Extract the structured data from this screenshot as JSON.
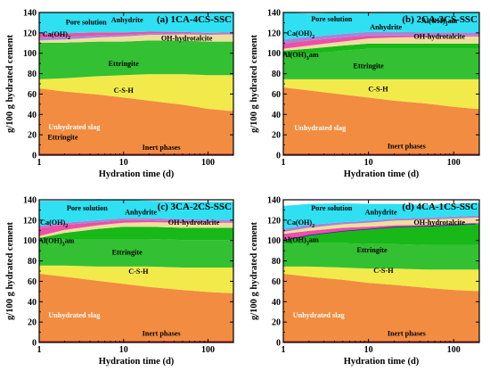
{
  "figure": {
    "ylabel": "g/100 g hydrated cement",
    "xlabel": "Hydration time (d)"
  },
  "palette": {
    "Inert phases": "#b01818",
    "Unhydrated slag": "#f28c40",
    "C-S-H": "#f2ea4a",
    "Ettringite": "#33c033",
    "Al(OH)3am": "#18b818",
    "OH-hydrotalcite": "#ede09c",
    "Anhydrite": "#a287d6",
    "Ca(OH)2": "#ee4fa8",
    "Pore solution": "#2ee0f2",
    "C4AF-line": "#3a1fae"
  },
  "label_colors": {
    "Unhydrated slag": "#ffffff"
  },
  "chart_data": [
    {
      "type": "area",
      "title": "(a) 1CA-4CS-SSC",
      "x": [
        1,
        2,
        5,
        10,
        20,
        50,
        100,
        180
      ],
      "xscale": "log",
      "xlim": [
        1,
        200
      ],
      "ylim": [
        0,
        140
      ],
      "xticks": [
        1,
        10,
        100
      ],
      "yticks": [
        0,
        20,
        40,
        60,
        80,
        100,
        120,
        140
      ],
      "xlabel": "Hydration time (d)",
      "ylabel": "g/100 g hydrated cement",
      "series": [
        {
          "name": "Inert phases",
          "values": [
            1.5,
            1.5,
            1.5,
            1.5,
            1.5,
            1.5,
            1.5,
            1.5
          ]
        },
        {
          "name": "Unhydrated slag",
          "values": [
            64,
            61,
            58,
            55,
            52,
            48,
            44,
            42
          ]
        },
        {
          "name": "C-S-H",
          "values": [
            9,
            13,
            18,
            22,
            26,
            30,
            33,
            35
          ]
        },
        {
          "name": "Ettringite",
          "values": [
            36,
            35,
            34,
            33,
            33,
            33,
            33,
            33
          ]
        },
        {
          "name": "OH-hydrotalcite",
          "values": [
            2,
            3,
            4,
            5,
            5.5,
            6,
            6.5,
            7
          ]
        },
        {
          "name": "Anhydrite",
          "values": [
            3,
            2.5,
            2,
            1.5,
            1.2,
            1,
            1,
            1
          ]
        },
        {
          "name": "Ca(OH)2",
          "values": [
            4,
            3.5,
            3,
            2.5,
            2,
            1.5,
            1,
            1
          ]
        },
        {
          "name": "Pore solution",
          "values": [
            20.5,
            20.5,
            19.5,
            19.5,
            18.8,
            19,
            20,
            19.5
          ]
        }
      ],
      "labels": [
        {
          "text": "Pore solution",
          "series": "Pore solution",
          "x": 3.6,
          "y": 131
        },
        {
          "text": "Anhydrite",
          "series": "Anhydrite",
          "x": 11,
          "y": 133
        },
        {
          "text": "Ca(OH)2",
          "series": "Ca(OH)2",
          "x": 1.6,
          "y": 119
        },
        {
          "text": "OH-hydrotalcite",
          "series": "OH-hydrotalcite",
          "x": 56,
          "y": 115
        },
        {
          "text": "Ettringite",
          "series": "Ettringite",
          "x": 10,
          "y": 90
        },
        {
          "text": "C-S-H",
          "series": "C-S-H",
          "x": 10,
          "y": 64
        },
        {
          "text": "Unhydrated slag",
          "series": "Unhydrated slag",
          "x": 2.6,
          "y": 28
        },
        {
          "text": "Inert phases",
          "series": "Inert phases",
          "x": 28,
          "y": 8
        },
        {
          "text": "Ettringite",
          "series": "Unhydrated slag",
          "x": 1.9,
          "y": 18
        }
      ]
    },
    {
      "type": "area",
      "title": "(b) 2CA-3CS-SSC",
      "x": [
        1,
        2,
        5,
        10,
        20,
        50,
        100,
        180
      ],
      "xscale": "log",
      "xlim": [
        1,
        200
      ],
      "ylim": [
        0,
        140
      ],
      "xticks": [
        1,
        10,
        100
      ],
      "yticks": [
        0,
        20,
        40,
        60,
        80,
        100,
        120,
        140
      ],
      "xlabel": "Hydration time (d)",
      "ylabel": "g/100 g hydrated cement",
      "series": [
        {
          "name": "Inert phases",
          "values": [
            1.5,
            1.5,
            1.5,
            1.5,
            1.5,
            1.5,
            1.5,
            1.5
          ]
        },
        {
          "name": "Unhydrated slag",
          "values": [
            65,
            62,
            58,
            55,
            52,
            49,
            46,
            44
          ]
        },
        {
          "name": "C-S-H",
          "values": [
            8,
            11,
            15,
            18,
            21,
            24,
            27,
            29
          ]
        },
        {
          "name": "Ettringite",
          "values": [
            22,
            25,
            28,
            30,
            30,
            30,
            30,
            30
          ]
        },
        {
          "name": "Al(OH)3am",
          "values": [
            6,
            5,
            5,
            5,
            5,
            5,
            5,
            5
          ]
        },
        {
          "name": "OH-hydrotalcite",
          "values": [
            2,
            3,
            4,
            5,
            6,
            6.5,
            7,
            7
          ]
        },
        {
          "name": "Ca(OH)2",
          "values": [
            5,
            5,
            4,
            3,
            2,
            1.5,
            1,
            1
          ]
        },
        {
          "name": "Anhydrite",
          "values": [
            4,
            3.5,
            3.5,
            3.5,
            3.5,
            3,
            3,
            3
          ]
        },
        {
          "name": "Pore solution",
          "values": [
            26.5,
            23,
            21,
            19,
            19,
            19,
            19.5,
            19.5
          ]
        }
      ],
      "labels": [
        {
          "text": "Pore solution",
          "series": "Pore solution",
          "x": 3.7,
          "y": 134
        },
        {
          "text": "Al(OH)3am",
          "series": "Al(OH)3am",
          "x": 68,
          "y": 132
        },
        {
          "text": "Anhydrite",
          "series": "Anhydrite",
          "x": 16,
          "y": 126
        },
        {
          "text": "Ca(OH)2",
          "series": "Ca(OH)2",
          "x": 1.6,
          "y": 120
        },
        {
          "text": "OH-hydrotalcite",
          "series": "OH-hydrotalcite",
          "x": 68,
          "y": 117
        },
        {
          "text": "Al(OH)3am",
          "series": "Al(OH)3am",
          "x": 1.6,
          "y": 99
        },
        {
          "text": "Ettringite",
          "series": "Ettringite",
          "x": 10,
          "y": 88
        },
        {
          "text": "C-S-H",
          "series": "C-S-H",
          "x": 13,
          "y": 65
        },
        {
          "text": "Unhydrated slag",
          "series": "Unhydrated slag",
          "x": 2.7,
          "y": 27
        },
        {
          "text": "Inert phases",
          "series": "Inert phases",
          "x": 28,
          "y": 9
        }
      ]
    },
    {
      "type": "area",
      "title": "(c) 3CA-2CS-SSC",
      "x": [
        1,
        2,
        5,
        10,
        20,
        50,
        100,
        180
      ],
      "xscale": "log",
      "xlim": [
        1,
        200
      ],
      "ylim": [
        0,
        140
      ],
      "xticks": [
        1,
        10,
        100
      ],
      "yticks": [
        0,
        20,
        40,
        60,
        80,
        100,
        120,
        140
      ],
      "xlabel": "Hydration time (d)",
      "ylabel": "g/100 g hydrated cement",
      "series": [
        {
          "name": "Inert phases",
          "values": [
            1.5,
            1.5,
            1.5,
            1.5,
            1.5,
            1.5,
            1.5,
            1.5
          ]
        },
        {
          "name": "Unhydrated slag",
          "values": [
            66,
            63,
            59,
            56,
            53,
            50,
            48,
            47
          ]
        },
        {
          "name": "C-S-H",
          "values": [
            8,
            11,
            14,
            17,
            20,
            22,
            24,
            25
          ]
        },
        {
          "name": "Ettringite",
          "values": [
            24,
            26,
            27,
            27,
            27,
            27,
            27,
            27
          ]
        },
        {
          "name": "Al(OH)3am",
          "values": [
            3,
            6,
            10,
            12,
            12,
            12,
            12,
            12
          ]
        },
        {
          "name": "OH-hydrotalcite",
          "values": [
            2,
            3,
            3.5,
            4,
            4.5,
            5,
            5,
            5
          ]
        },
        {
          "name": "Ca(OH)2",
          "values": [
            8,
            5,
            3,
            2.5,
            2,
            1.5,
            1,
            1
          ]
        },
        {
          "name": "Anhydrite",
          "values": [
            2,
            2,
            2,
            2,
            2,
            2,
            2,
            2
          ]
        },
        {
          "name": "Pore solution",
          "values": [
            24.5,
            21.5,
            20.5,
            18,
            17,
            17,
            17.5,
            17.5
          ]
        }
      ],
      "labels": [
        {
          "text": "Pore solution",
          "series": "Pore solution",
          "x": 3.7,
          "y": 132
        },
        {
          "text": "Anhydrite",
          "series": "Anhydrite",
          "x": 16,
          "y": 128
        },
        {
          "text": "Ca(OH)2",
          "series": "Ca(OH)2",
          "x": 1.5,
          "y": 118
        },
        {
          "text": "OH-hydrotalcite",
          "series": "OH-hydrotalcite",
          "x": 68,
          "y": 118
        },
        {
          "text": "Al(OH)3am",
          "series": "Al(OH)3am",
          "x": 1.6,
          "y": 100
        },
        {
          "text": "Ettringite",
          "series": "Ettringite",
          "x": 11,
          "y": 89
        },
        {
          "text": "C-S-H",
          "series": "C-S-H",
          "x": 15,
          "y": 70
        },
        {
          "text": "Unhydrated slag",
          "series": "Unhydrated slag",
          "x": 2.6,
          "y": 27
        },
        {
          "text": "Inert phases",
          "series": "Inert phases",
          "x": 28,
          "y": 9
        }
      ]
    },
    {
      "type": "area",
      "title": "(d) 4CA-1CS-SSC",
      "x": [
        1,
        2,
        5,
        10,
        20,
        50,
        100,
        180
      ],
      "xscale": "log",
      "xlim": [
        1,
        200
      ],
      "ylim": [
        0,
        140
      ],
      "xticks": [
        1,
        10,
        100
      ],
      "yticks": [
        0,
        20,
        40,
        60,
        80,
        100,
        120,
        140
      ],
      "xlabel": "Hydration time (d)",
      "ylabel": "g/100 g hydrated cement",
      "series": [
        {
          "name": "Inert phases",
          "values": [
            1.5,
            1.5,
            1.5,
            1.5,
            1.5,
            1.5,
            1.5,
            1.5
          ]
        },
        {
          "name": "Unhydrated slag",
          "values": [
            66,
            63,
            60,
            57,
            55,
            52,
            50,
            49
          ]
        },
        {
          "name": "C-S-H",
          "values": [
            7,
            10,
            12,
            14,
            16,
            18,
            20,
            21
          ]
        },
        {
          "name": "Ettringite",
          "values": [
            22,
            23,
            24,
            24,
            24,
            24,
            24,
            24
          ]
        },
        {
          "name": "Al(OH)3am",
          "values": [
            4,
            8,
            12,
            15,
            17,
            19,
            20,
            21
          ]
        },
        {
          "name": "Ca(OH)2",
          "values": [
            6,
            4,
            3,
            2,
            1.5,
            1,
            1,
            1
          ]
        },
        {
          "name": "OH-hydrotalcite",
          "values": [
            2,
            3,
            3.5,
            4,
            4.5,
            5,
            5,
            5
          ]
        },
        {
          "name": "Anhydrite",
          "values": [
            3,
            3,
            2,
            2,
            2,
            2,
            2,
            2
          ]
        },
        {
          "name": "Pore solution",
          "values": [
            22.5,
            20.5,
            18.5,
            16.5,
            14.5,
            12.5,
            12.5,
            12.5
          ]
        }
      ],
      "labels": [
        {
          "text": "Pore solution",
          "series": "Pore solution",
          "x": 3.7,
          "y": 132
        },
        {
          "text": "Anhydrite",
          "series": "Anhydrite",
          "x": 14,
          "y": 128
        },
        {
          "text": "Ca(OH)2",
          "series": "Ca(OH)2",
          "x": 1.6,
          "y": 118
        },
        {
          "text": "OH-hydrotalcite",
          "series": "OH-hydrotalcite",
          "x": 68,
          "y": 118
        },
        {
          "text": "Al(OH)3am",
          "series": "Al(OH)3am",
          "x": 1.6,
          "y": 101
        },
        {
          "text": "Ettringite",
          "series": "Ettringite",
          "x": 11,
          "y": 91
        },
        {
          "text": "C-S-H",
          "series": "C-S-H",
          "x": 15,
          "y": 71
        },
        {
          "text": "Unhydrated slag",
          "series": "Unhydrated slag",
          "x": 2.6,
          "y": 27
        },
        {
          "text": "Inert phases",
          "series": "Inert phases",
          "x": 28,
          "y": 9
        }
      ]
    }
  ]
}
